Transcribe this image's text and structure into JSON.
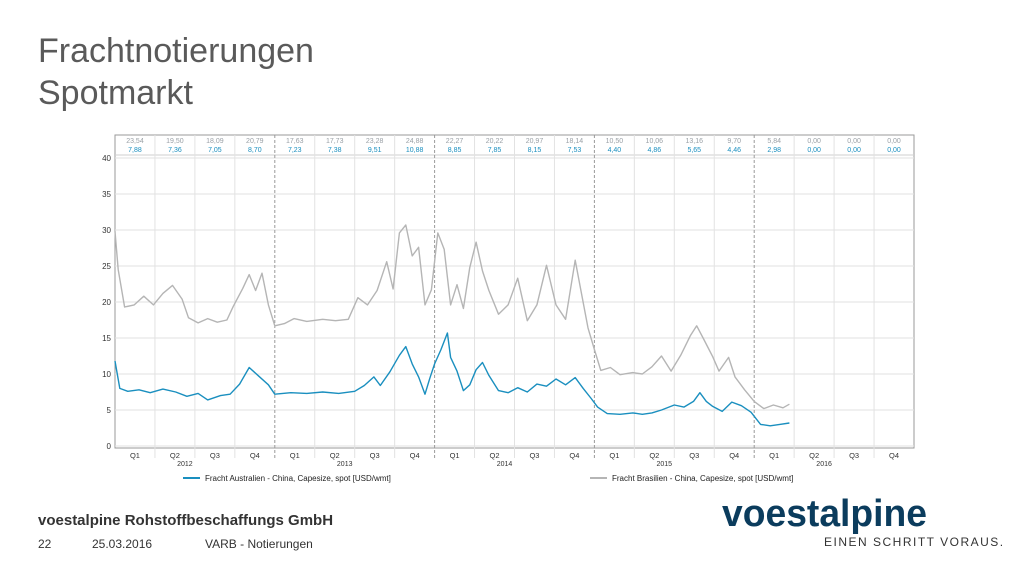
{
  "slide": {
    "title_line1": "Frachtnotierungen",
    "title_line2": "Spotmarkt",
    "company": "voestalpine Rohstoffbeschaffungs GmbH",
    "page_number": "22",
    "date": "25.03.2016",
    "section": "VARB - Notierungen",
    "logo_text": "voestalpine",
    "slogan": "EINEN SCHRITT VORAUS.",
    "colors": {
      "brand": "#0b3c5d",
      "australia": "#1a8fbf",
      "brasilien": "#b5b5b5",
      "brasilien_text": "#9aa0a6",
      "australia_text": "#1a8fbf"
    }
  },
  "chart_data": {
    "type": "line",
    "ylim": [
      0,
      40
    ],
    "yticks": [
      "0",
      "5",
      "10",
      "15",
      "20",
      "25",
      "30",
      "35",
      "40"
    ],
    "quarters": [
      "Q1",
      "Q2",
      "Q3",
      "Q4",
      "Q1",
      "Q2",
      "Q3",
      "Q4",
      "Q1",
      "Q2",
      "Q3",
      "Q4",
      "Q1",
      "Q2",
      "Q3",
      "Q4",
      "Q1",
      "Q2",
      "Q3",
      "Q4"
    ],
    "years": [
      "2012",
      "2013",
      "2014",
      "2015",
      "2016"
    ],
    "x_start": 2012.0,
    "x_end": 2017.0,
    "grid": true,
    "legend_position": "bottom",
    "quarter_values_brasilien": [
      "23,54",
      "19,50",
      "18,09",
      "20,79",
      "17,63",
      "17,73",
      "23,28",
      "24,88",
      "22,27",
      "20,22",
      "20,97",
      "18,14",
      "10,50",
      "10,06",
      "13,16",
      "9,70",
      "5,84",
      "0,00",
      "0,00",
      "0,00"
    ],
    "quarter_values_australien": [
      "7,88",
      "7,36",
      "7,05",
      "8,70",
      "7,23",
      "7,38",
      "9,51",
      "10,88",
      "8,85",
      "7,85",
      "8,15",
      "7,53",
      "4,40",
      "4,86",
      "5,65",
      "4,46",
      "2,98",
      "0,00",
      "0,00",
      "0,00"
    ],
    "series": [
      {
        "name": "Fracht Australien - China, Capesize, spot [USD/wmt]",
        "color": "#1a8fbf",
        "points": [
          [
            2012.0,
            11.8
          ],
          [
            2012.03,
            8.0
          ],
          [
            2012.08,
            7.6
          ],
          [
            2012.15,
            7.8
          ],
          [
            2012.22,
            7.4
          ],
          [
            2012.3,
            7.9
          ],
          [
            2012.38,
            7.5
          ],
          [
            2012.45,
            6.9
          ],
          [
            2012.52,
            7.3
          ],
          [
            2012.58,
            6.4
          ],
          [
            2012.66,
            7.0
          ],
          [
            2012.72,
            7.2
          ],
          [
            2012.78,
            8.6
          ],
          [
            2012.84,
            10.9
          ],
          [
            2012.9,
            9.7
          ],
          [
            2012.96,
            8.5
          ],
          [
            2013.0,
            7.2
          ],
          [
            2013.1,
            7.4
          ],
          [
            2013.2,
            7.3
          ],
          [
            2013.3,
            7.5
          ],
          [
            2013.4,
            7.3
          ],
          [
            2013.5,
            7.6
          ],
          [
            2013.56,
            8.4
          ],
          [
            2013.62,
            9.6
          ],
          [
            2013.66,
            8.4
          ],
          [
            2013.72,
            10.3
          ],
          [
            2013.78,
            12.6
          ],
          [
            2013.82,
            13.8
          ],
          [
            2013.86,
            11.4
          ],
          [
            2013.9,
            9.6
          ],
          [
            2013.94,
            7.2
          ],
          [
            2013.97,
            9.4
          ],
          [
            2014.0,
            11.4
          ],
          [
            2014.04,
            13.4
          ],
          [
            2014.08,
            15.7
          ],
          [
            2014.1,
            12.3
          ],
          [
            2014.14,
            10.4
          ],
          [
            2014.18,
            7.7
          ],
          [
            2014.22,
            8.5
          ],
          [
            2014.26,
            10.6
          ],
          [
            2014.3,
            11.6
          ],
          [
            2014.34,
            9.8
          ],
          [
            2014.4,
            7.7
          ],
          [
            2014.46,
            7.4
          ],
          [
            2014.52,
            8.1
          ],
          [
            2014.58,
            7.5
          ],
          [
            2014.64,
            8.6
          ],
          [
            2014.7,
            8.3
          ],
          [
            2014.76,
            9.3
          ],
          [
            2014.82,
            8.5
          ],
          [
            2014.88,
            9.5
          ],
          [
            2014.93,
            8.0
          ],
          [
            2014.98,
            6.6
          ],
          [
            2015.02,
            5.4
          ],
          [
            2015.08,
            4.5
          ],
          [
            2015.16,
            4.4
          ],
          [
            2015.24,
            4.6
          ],
          [
            2015.3,
            4.4
          ],
          [
            2015.36,
            4.6
          ],
          [
            2015.42,
            5.0
          ],
          [
            2015.5,
            5.7
          ],
          [
            2015.56,
            5.4
          ],
          [
            2015.62,
            6.2
          ],
          [
            2015.66,
            7.4
          ],
          [
            2015.7,
            6.2
          ],
          [
            2015.74,
            5.5
          ],
          [
            2015.8,
            4.8
          ],
          [
            2015.86,
            6.1
          ],
          [
            2015.92,
            5.6
          ],
          [
            2015.98,
            4.7
          ],
          [
            2016.04,
            3.0
          ],
          [
            2016.1,
            2.8
          ],
          [
            2016.16,
            3.0
          ],
          [
            2016.22,
            3.2
          ]
        ]
      },
      {
        "name": "Fracht Brasilien - China, Capesize, spot [USD/wmt]",
        "color": "#b5b5b5",
        "points": [
          [
            2012.0,
            29.8
          ],
          [
            2012.02,
            24.5
          ],
          [
            2012.06,
            19.3
          ],
          [
            2012.12,
            19.6
          ],
          [
            2012.18,
            20.8
          ],
          [
            2012.24,
            19.6
          ],
          [
            2012.3,
            21.2
          ],
          [
            2012.36,
            22.3
          ],
          [
            2012.42,
            20.4
          ],
          [
            2012.46,
            17.8
          ],
          [
            2012.52,
            17.1
          ],
          [
            2012.58,
            17.7
          ],
          [
            2012.64,
            17.2
          ],
          [
            2012.7,
            17.5
          ],
          [
            2012.74,
            19.4
          ],
          [
            2012.8,
            21.9
          ],
          [
            2012.84,
            23.8
          ],
          [
            2012.88,
            21.6
          ],
          [
            2012.92,
            24.0
          ],
          [
            2012.96,
            19.6
          ],
          [
            2013.0,
            16.7
          ],
          [
            2013.06,
            17.0
          ],
          [
            2013.12,
            17.7
          ],
          [
            2013.2,
            17.3
          ],
          [
            2013.3,
            17.6
          ],
          [
            2013.38,
            17.4
          ],
          [
            2013.46,
            17.6
          ],
          [
            2013.52,
            20.6
          ],
          [
            2013.58,
            19.6
          ],
          [
            2013.64,
            21.6
          ],
          [
            2013.7,
            25.6
          ],
          [
            2013.74,
            21.8
          ],
          [
            2013.78,
            29.6
          ],
          [
            2013.82,
            30.7
          ],
          [
            2013.86,
            26.4
          ],
          [
            2013.9,
            27.6
          ],
          [
            2013.94,
            19.6
          ],
          [
            2013.98,
            21.7
          ],
          [
            2014.02,
            29.6
          ],
          [
            2014.06,
            27.3
          ],
          [
            2014.1,
            19.6
          ],
          [
            2014.14,
            22.4
          ],
          [
            2014.18,
            19.1
          ],
          [
            2014.22,
            24.8
          ],
          [
            2014.26,
            28.3
          ],
          [
            2014.3,
            24.3
          ],
          [
            2014.34,
            21.6
          ],
          [
            2014.4,
            18.3
          ],
          [
            2014.46,
            19.6
          ],
          [
            2014.52,
            23.3
          ],
          [
            2014.58,
            17.4
          ],
          [
            2014.64,
            19.6
          ],
          [
            2014.7,
            25.1
          ],
          [
            2014.76,
            19.6
          ],
          [
            2014.82,
            17.6
          ],
          [
            2014.88,
            25.8
          ],
          [
            2014.92,
            21.1
          ],
          [
            2014.96,
            16.4
          ],
          [
            2015.0,
            13.4
          ],
          [
            2015.04,
            10.5
          ],
          [
            2015.1,
            10.9
          ],
          [
            2015.16,
            9.9
          ],
          [
            2015.24,
            10.2
          ],
          [
            2015.3,
            10.0
          ],
          [
            2015.36,
            11.0
          ],
          [
            2015.42,
            12.5
          ],
          [
            2015.48,
            10.4
          ],
          [
            2015.54,
            12.6
          ],
          [
            2015.6,
            15.3
          ],
          [
            2015.64,
            16.7
          ],
          [
            2015.68,
            15.0
          ],
          [
            2015.74,
            12.4
          ],
          [
            2015.78,
            10.4
          ],
          [
            2015.84,
            12.3
          ],
          [
            2015.88,
            9.6
          ],
          [
            2015.94,
            7.8
          ],
          [
            2016.0,
            6.2
          ],
          [
            2016.06,
            5.2
          ],
          [
            2016.12,
            5.7
          ],
          [
            2016.18,
            5.3
          ],
          [
            2016.22,
            5.8
          ]
        ]
      }
    ]
  }
}
